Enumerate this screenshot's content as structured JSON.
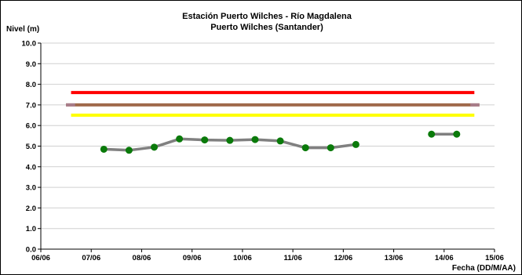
{
  "chart_data": {
    "type": "line",
    "title": "Estación Puerto Wilches - Río Magdalena",
    "subtitle": "Puerto Wilches (Santander)",
    "ylabel": "Nivel (m)",
    "xlabel": "Fecha (DD/M/AA)",
    "ylim": [
      0,
      10
    ],
    "yticks": [
      "0.0",
      "1.0",
      "2.0",
      "3.0",
      "4.0",
      "5.0",
      "6.0",
      "7.0",
      "8.0",
      "9.0",
      "10.0"
    ],
    "xlim": [
      0,
      9
    ],
    "xticks": [
      "06/06",
      "07/06",
      "08/06",
      "09/06",
      "10/06",
      "11/06",
      "12/06",
      "13/06",
      "14/06",
      "15/06"
    ],
    "grid": "horizontal",
    "series": [
      {
        "color": "#808080",
        "marker_color": "#0a7a0a",
        "segments": [
          [
            [
              1.25,
              4.85
            ],
            [
              1.75,
              4.8
            ],
            [
              2.25,
              4.95
            ],
            [
              2.75,
              5.35
            ],
            [
              3.25,
              5.3
            ],
            [
              3.75,
              5.28
            ],
            [
              4.25,
              5.32
            ],
            [
              4.75,
              5.25
            ],
            [
              5.25,
              4.92
            ],
            [
              5.75,
              4.92
            ],
            [
              6.25,
              5.08
            ]
          ],
          [
            [
              7.75,
              5.58
            ],
            [
              8.25,
              5.58
            ]
          ]
        ]
      }
    ],
    "reference_lines": [
      {
        "y": 7.6,
        "x": [
          0.6,
          8.6
        ],
        "color": "#ff0000"
      },
      {
        "y": 7.0,
        "x": [
          0.5,
          8.7
        ],
        "color": "#a0694b",
        "end_color": "#a87d8a"
      },
      {
        "y": 6.5,
        "x": [
          0.6,
          8.6
        ],
        "color": "#ffff00"
      }
    ]
  }
}
